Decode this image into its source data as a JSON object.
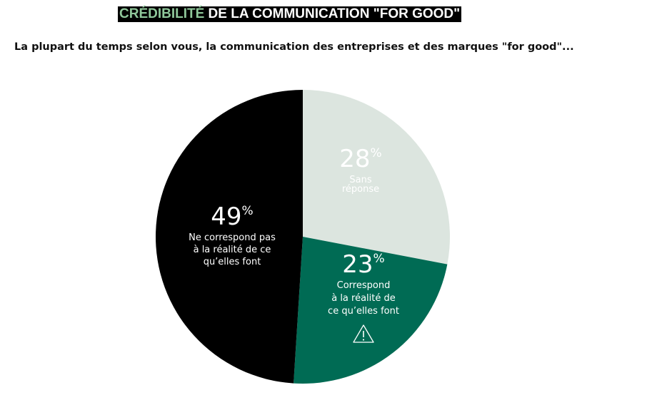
{
  "header": {
    "title_accent": "CRÉDIBILITÉ",
    "title_rest": " DE LA COMMUNICATION \"FOR GOOD\"",
    "question": "La plupart du temps selon vous, la communication des entreprises et des marques \"for good\"..."
  },
  "colors": {
    "title_accent": "#8fc79a",
    "black": "#000000",
    "light": "#dce5df",
    "green": "#006b54"
  },
  "chart_data": {
    "type": "pie",
    "title": "CRÉDIBILITÉ DE LA COMMUNICATION \"FOR GOOD\"",
    "start": "12 o'clock, clockwise",
    "slices": [
      {
        "value": 28,
        "value_text": "28",
        "unit": "%",
        "label_lines": [
          "Sans",
          "réponse"
        ],
        "color": "#dce5df",
        "text_color": "#ffffff"
      },
      {
        "value": 23,
        "value_text": "23",
        "unit": "%",
        "label_lines": [
          "Correspond",
          "à la réalité de",
          "ce qu’elles font"
        ],
        "color": "#006b54",
        "text_color": "#ffffff",
        "icon": "warning-icon"
      },
      {
        "value": 49,
        "value_text": "49",
        "unit": "%",
        "label_lines": [
          "Ne correspond pas",
          "à la réalité de ce",
          "qu’elles font"
        ],
        "color": "#000000",
        "text_color": "#ffffff"
      }
    ]
  }
}
